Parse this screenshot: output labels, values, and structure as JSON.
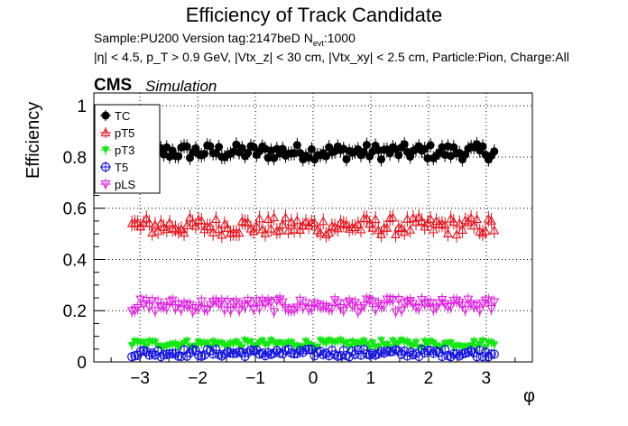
{
  "title": "Efficiency of Track Candidate",
  "subtitle_line1": "Sample:PU200   Version tag:2147beD  N",
  "subtitle_line1_sub": "evt",
  "subtitle_line1_end": ":1000",
  "subtitle_line2": "|η| < 4.5, p_T > 0.9 GeV, |Vtx_z| < 30 cm, |Vtx_xy| < 2.5 cm, Particle:Pion, Charge:All",
  "cms_label": "CMS",
  "sim_label": "Simulation",
  "chart_data": {
    "type": "scatter",
    "title": "Efficiency of Track Candidate",
    "xlabel": "φ",
    "ylabel": "Efficiency",
    "xlim": [
      -3.8,
      3.8
    ],
    "ylim": [
      0,
      1.05
    ],
    "grid": true,
    "legend_position": "top-left",
    "x_ticks": [
      -3,
      -2,
      -1,
      0,
      1,
      2,
      3
    ],
    "x_tick_labels": [
      "−3",
      "−2",
      "−1",
      "0",
      "1",
      "2",
      "3"
    ],
    "y_ticks": [
      0,
      0.2,
      0.4,
      0.6,
      0.8,
      1
    ],
    "y_tick_labels": [
      "0",
      "0.2",
      "0.4",
      "0.6",
      "0.8",
      "1"
    ],
    "x_range_points": [
      -3.14,
      3.14
    ],
    "n_points": 126,
    "series": [
      {
        "name": "TC",
        "color": "#000000",
        "marker": "filled-circle",
        "mean": 0.82,
        "spread": 0.03
      },
      {
        "name": "pT5",
        "color": "#e8111b",
        "marker": "open-triangle",
        "mean": 0.53,
        "spread": 0.035
      },
      {
        "name": "pT3",
        "color": "#13e813",
        "marker": "filled-triangle-down",
        "mean": 0.07,
        "spread": 0.015
      },
      {
        "name": "T5",
        "color": "#1010e0",
        "marker": "open-circle",
        "mean": 0.035,
        "spread": 0.015
      },
      {
        "name": "pLS",
        "color": "#e020e0",
        "marker": "open-triangle-down",
        "mean": 0.22,
        "spread": 0.025
      }
    ]
  }
}
